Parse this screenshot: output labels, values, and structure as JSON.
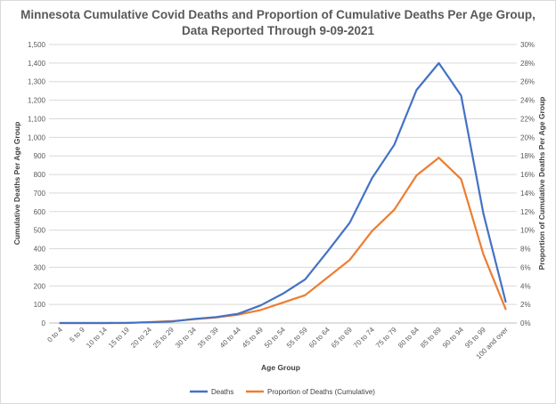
{
  "chart_data": {
    "type": "line",
    "title_line1": "Minnesota Cumulative Covid Deaths and Proportion of Cumulative Deaths Per Age Group,",
    "title_line2": "Data Reported Through 9-09-2021",
    "xlabel": "Age Group",
    "ylabel_left": "Cumulative Deaths Per Age Group",
    "ylabel_right": "Proportion of Cumulative Deaths Per Age Group",
    "categories": [
      "0 to 4",
      "5 to 9",
      "10 to 14",
      "15 to 19",
      "20 to 24",
      "25 to 29",
      "30 to 34",
      "35 to 39",
      "40 to 44",
      "45 to 49",
      "50 to 54",
      "55 to 59",
      "60 to 64",
      "65 to 69",
      "70 to 74",
      "75 to 79",
      "80 to 84",
      "85 to 89",
      "90 to 94",
      "95 to 99",
      "100 and over"
    ],
    "ylim_left": [
      0,
      1500
    ],
    "yticks_left": [
      "0",
      "100",
      "200",
      "300",
      "400",
      "500",
      "600",
      "700",
      "800",
      "900",
      "1,000",
      "1,100",
      "1,200",
      "1,300",
      "1,400",
      "1,500"
    ],
    "ylim_right": [
      0,
      30
    ],
    "yticks_right": [
      "0%",
      "2%",
      "4%",
      "6%",
      "8%",
      "10%",
      "12%",
      "14%",
      "16%",
      "18%",
      "20%",
      "22%",
      "24%",
      "26%",
      "28%",
      "30%"
    ],
    "grid": true,
    "legend_position": "bottom",
    "series": [
      {
        "name": "Deaths",
        "axis": "left",
        "color": "#4472c4",
        "values": [
          0,
          0,
          0,
          1,
          4,
          8,
          22,
          32,
          50,
          95,
          158,
          235,
          385,
          540,
          780,
          960,
          1255,
          1400,
          1225,
          590,
          115
        ]
      },
      {
        "name": "Proportion of Deaths (Cumulative)",
        "axis": "right",
        "color": "#ed7d31",
        "values": [
          0,
          0,
          0,
          0,
          0.1,
          0.2,
          0.4,
          0.6,
          0.9,
          1.4,
          2.2,
          3.0,
          4.9,
          6.8,
          9.9,
          12.2,
          15.9,
          17.8,
          15.5,
          7.4,
          1.5
        ]
      }
    ]
  }
}
